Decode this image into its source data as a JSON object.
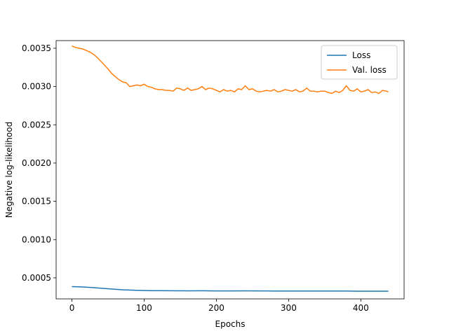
{
  "chart_data": {
    "type": "line",
    "title": "",
    "xlabel": "Epochs",
    "ylabel": "Negative log-likelihood",
    "xlim": [
      -21.9,
      459.9
    ],
    "ylim": [
      0.000225,
      0.0036
    ],
    "xticks": [
      0,
      100,
      200,
      300,
      400
    ],
    "xtick_labels": [
      "0",
      "100",
      "200",
      "300",
      "400"
    ],
    "yticks": [
      0.0005,
      0.001,
      0.0015,
      0.002,
      0.0025,
      0.003,
      0.0035
    ],
    "ytick_labels": [
      "0.0005",
      "0.0010",
      "0.0015",
      "0.0020",
      "0.0025",
      "0.0030",
      "0.0035"
    ],
    "grid": false,
    "legend_position": "upper right",
    "series": [
      {
        "name": "Loss",
        "color": "#1f77b4",
        "x": [
          0,
          10,
          20,
          30,
          40,
          50,
          60,
          70,
          80,
          90,
          100,
          110,
          120,
          140,
          160,
          180,
          200,
          220,
          240,
          260,
          280,
          300,
          320,
          340,
          360,
          380,
          400,
          420,
          438
        ],
        "y": [
          0.000385,
          0.000382,
          0.000378,
          0.000372,
          0.000365,
          0.000358,
          0.00035,
          0.000344,
          0.00034,
          0.000337,
          0.000335,
          0.000333,
          0.000332,
          0.000331,
          0.00033,
          0.000331,
          0.000329,
          0.000329,
          0.00033,
          0.000329,
          0.000328,
          0.000328,
          0.000328,
          0.000327,
          0.000327,
          0.000327,
          0.000326,
          0.000326,
          0.000326
        ]
      },
      {
        "name": "Val. loss",
        "color": "#ff7f0e",
        "x": [
          0,
          5,
          10,
          15,
          20,
          25,
          30,
          35,
          40,
          45,
          50,
          55,
          60,
          65,
          70,
          75,
          80,
          85,
          90,
          95,
          100,
          105,
          110,
          115,
          120,
          125,
          130,
          135,
          140,
          145,
          150,
          155,
          160,
          165,
          170,
          175,
          180,
          185,
          190,
          195,
          200,
          205,
          210,
          215,
          220,
          225,
          230,
          235,
          240,
          245,
          250,
          255,
          260,
          265,
          270,
          275,
          280,
          285,
          290,
          295,
          300,
          305,
          310,
          315,
          320,
          325,
          330,
          335,
          340,
          345,
          350,
          355,
          360,
          365,
          370,
          375,
          380,
          385,
          390,
          395,
          400,
          405,
          410,
          415,
          420,
          425,
          430,
          435,
          438
        ],
        "y": [
          0.00353,
          0.00351,
          0.0035,
          0.00349,
          0.00347,
          0.00345,
          0.00342,
          0.00338,
          0.00333,
          0.00328,
          0.00323,
          0.00317,
          0.00313,
          0.00309,
          0.00306,
          0.00305,
          0.003,
          0.00301,
          0.00302,
          0.00301,
          0.00303,
          0.003,
          0.00299,
          0.00297,
          0.00296,
          0.00296,
          0.00295,
          0.00295,
          0.00294,
          0.00298,
          0.00297,
          0.00295,
          0.00298,
          0.00295,
          0.00296,
          0.00297,
          0.003,
          0.00296,
          0.00298,
          0.00297,
          0.00295,
          0.00293,
          0.00296,
          0.00294,
          0.00295,
          0.00293,
          0.00297,
          0.00296,
          0.00301,
          0.00296,
          0.00297,
          0.00294,
          0.00293,
          0.00294,
          0.00295,
          0.00294,
          0.00296,
          0.00293,
          0.00294,
          0.00296,
          0.00295,
          0.00294,
          0.00296,
          0.00293,
          0.00294,
          0.00298,
          0.00294,
          0.00294,
          0.00293,
          0.00294,
          0.00294,
          0.00292,
          0.00291,
          0.00294,
          0.00292,
          0.00295,
          0.00301,
          0.00295,
          0.00294,
          0.00297,
          0.00293,
          0.00294,
          0.00296,
          0.00292,
          0.00293,
          0.00291,
          0.00295,
          0.00294,
          0.00293
        ]
      }
    ]
  }
}
